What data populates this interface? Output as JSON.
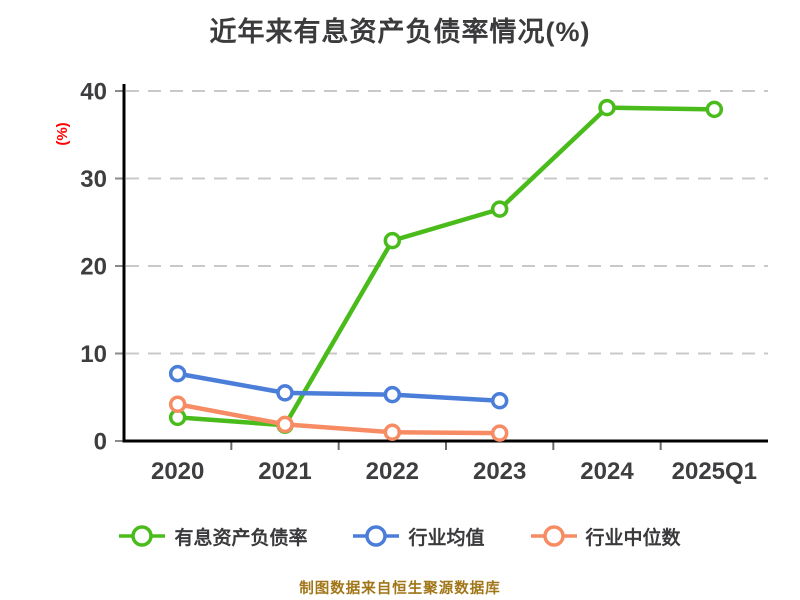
{
  "source_note": "制图数据来自恒生聚源数据库",
  "colors": {
    "title": "#3B3B3D",
    "tick_label": "#3E3E40",
    "axis": "#000000",
    "grid": "#C9C9C9",
    "y_tick_mark": "#8A8A8A",
    "x_tick_mark": "#6A6A6A",
    "ylabel": "#FE0000",
    "footer": "#A07618",
    "background": "#FFFFFF"
  },
  "chart_data": {
    "type": "line",
    "title": "近年来有息资产负债率情况(%)",
    "xlabel": "",
    "ylabel": "(%)",
    "categories": [
      "2020",
      "2021",
      "2022",
      "2023",
      "2024",
      "2025Q1"
    ],
    "series": [
      {
        "name": "有息资产负债率",
        "color": "#49BC1B",
        "values": [
          2.7,
          1.8,
          22.9,
          26.5,
          38.1,
          37.9
        ]
      },
      {
        "name": "行业均值",
        "color": "#4A7ED9",
        "values": [
          7.7,
          5.5,
          5.3,
          4.6,
          null,
          null
        ]
      },
      {
        "name": "行业中位数",
        "color": "#F78C64",
        "values": [
          4.2,
          1.9,
          1.0,
          0.9,
          null,
          null
        ]
      }
    ],
    "ylim": [
      0,
      40
    ],
    "yticks": [
      0,
      10,
      20,
      30,
      40
    ],
    "grid": true,
    "grid_style": "dashed",
    "marker": "circle-white-fill",
    "legend_position": "bottom"
  }
}
